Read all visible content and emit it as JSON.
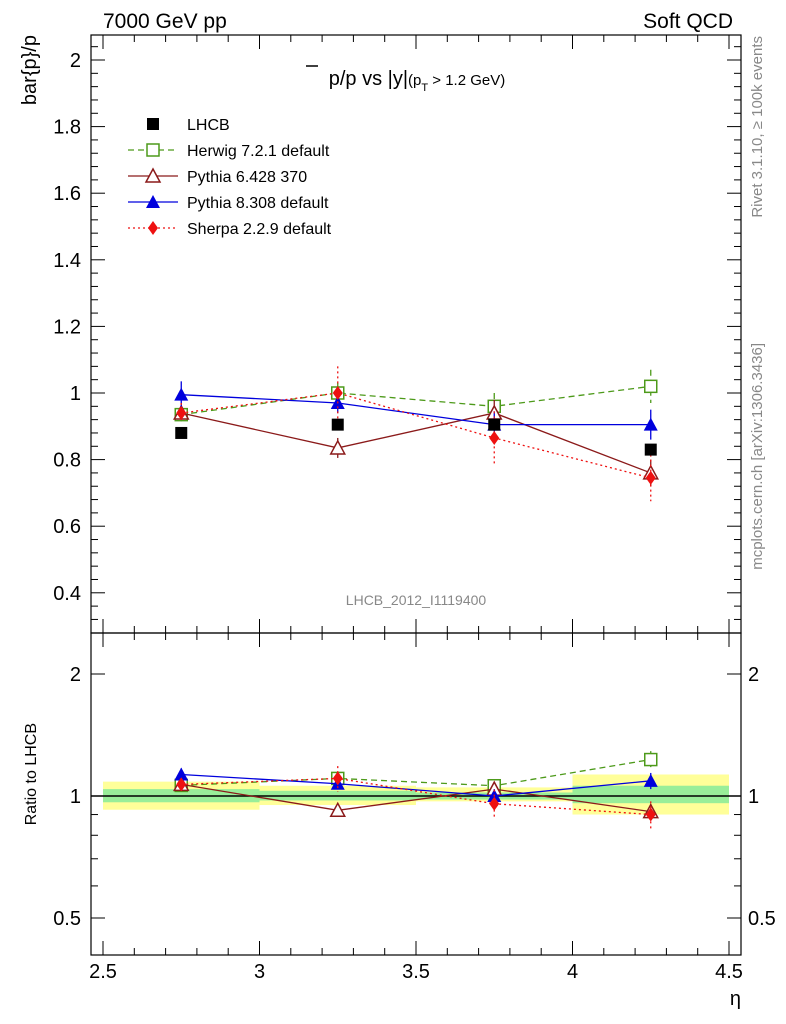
{
  "header": {
    "left": "7000 GeV pp",
    "right": "Soft QCD"
  },
  "side": {
    "rivet": "Rivet 3.1.10, ≥ 100k events",
    "mcplots": "mcplots.cern.ch [arXiv:1306.3436]"
  },
  "chart_data": [
    {
      "type": "scatter",
      "title": "p̄/p vs |y| (p_T > 1.2 GeV)",
      "title_parts": {
        "main": "p/p vs |y|",
        "paren_open": "(p",
        "sub": "T",
        "paren_close": " > 1.2 GeV)"
      },
      "ylabel": "bar{p}/p",
      "watermark": "LHCB_2012_I1119400",
      "xlim": [
        2.5,
        4.5
      ],
      "ylim": [
        0.3,
        2.08
      ],
      "yticks": [
        "0.4",
        "0.6",
        "0.8",
        "1",
        "1.2",
        "1.4",
        "1.6",
        "1.8",
        "2"
      ],
      "legend_position": "top-left",
      "series": [
        {
          "name": "LHCB",
          "color": "#000000",
          "marker": "filled-square",
          "line": "none",
          "x": [
            2.75,
            3.25,
            3.75,
            4.25
          ],
          "y": [
            0.88,
            0.905,
            0.905,
            0.83
          ],
          "err": [
            0.01,
            0.01,
            0.01,
            0.01
          ]
        },
        {
          "name": "Herwig 7.2.1 default",
          "color": "#4d9a1a",
          "marker": "open-square",
          "line": "dashed",
          "x": [
            2.75,
            3.25,
            3.75,
            4.25
          ],
          "y": [
            0.935,
            1.0,
            0.96,
            1.02
          ],
          "err": [
            0.02,
            0.03,
            0.04,
            0.05
          ]
        },
        {
          "name": "Pythia 6.428 370",
          "color": "#8b1a1a",
          "marker": "open-triangle",
          "line": "solid",
          "x": [
            2.75,
            3.25,
            3.75,
            4.25
          ],
          "y": [
            0.94,
            0.835,
            0.94,
            0.76
          ],
          "err": [
            0.02,
            0.03,
            0.04,
            0.04
          ]
        },
        {
          "name": "Pythia 8.308 default",
          "color": "#0000dd",
          "marker": "filled-triangle",
          "line": "solid",
          "x": [
            2.75,
            3.25,
            3.75,
            4.25
          ],
          "y": [
            0.995,
            0.97,
            0.905,
            0.905
          ],
          "err": [
            0.04,
            0.03,
            0.04,
            0.045
          ]
        },
        {
          "name": "Sherpa 2.2.9 default",
          "color": "#ee1111",
          "marker": "filled-diamond",
          "line": "dotted",
          "x": [
            2.75,
            3.25,
            3.75,
            4.25
          ],
          "y": [
            0.94,
            1.0,
            0.865,
            0.745
          ],
          "err": [
            0.03,
            0.08,
            0.08,
            0.07
          ]
        }
      ]
    },
    {
      "type": "scatter",
      "ylabel": "Ratio to LHCB",
      "xlabel": "η",
      "xlim": [
        2.5,
        4.5
      ],
      "ylim": [
        0.4,
        2.4
      ],
      "log_y": true,
      "yticks": [
        "0.5",
        "1",
        "2"
      ],
      "xticks": [
        "2.5",
        "3",
        "3.5",
        "4",
        "4.5"
      ],
      "bands": [
        {
          "x": [
            2.5,
            3.0
          ],
          "yellow": [
            0.925,
            1.085
          ],
          "green": [
            0.965,
            1.04
          ]
        },
        {
          "x": [
            3.0,
            3.5
          ],
          "yellow": [
            0.95,
            1.06
          ],
          "green": [
            0.975,
            1.03
          ]
        },
        {
          "x": [
            3.5,
            4.0
          ],
          "yellow": [
            0.97,
            1.05
          ],
          "green": [
            0.98,
            1.02
          ]
        },
        {
          "x": [
            4.0,
            4.5
          ],
          "yellow": [
            0.9,
            1.13
          ],
          "green": [
            0.96,
            1.06
          ]
        }
      ],
      "series": [
        {
          "name": "Herwig 7.2.1 default",
          "x": [
            2.75,
            3.25,
            3.75,
            4.25
          ],
          "y": [
            1.062,
            1.105,
            1.06,
            1.23
          ],
          "err": [
            0.03,
            0.04,
            0.04,
            0.06
          ]
        },
        {
          "name": "Pythia 6.428 370",
          "x": [
            2.75,
            3.25,
            3.75,
            4.25
          ],
          "y": [
            1.068,
            0.922,
            1.04,
            0.915
          ],
          "err": [
            0.03,
            0.03,
            0.04,
            0.04
          ]
        },
        {
          "name": "Pythia 8.308 default",
          "x": [
            2.75,
            3.25,
            3.75,
            4.25
          ],
          "y": [
            1.13,
            1.072,
            1.0,
            1.09
          ],
          "err": [
            0.04,
            0.03,
            0.04,
            0.05
          ]
        },
        {
          "name": "Sherpa 2.2.9 default",
          "x": [
            2.75,
            3.25,
            3.75,
            4.25
          ],
          "y": [
            1.068,
            1.105,
            0.957,
            0.9
          ],
          "err": [
            0.04,
            0.08,
            0.08,
            0.07
          ]
        }
      ]
    }
  ]
}
